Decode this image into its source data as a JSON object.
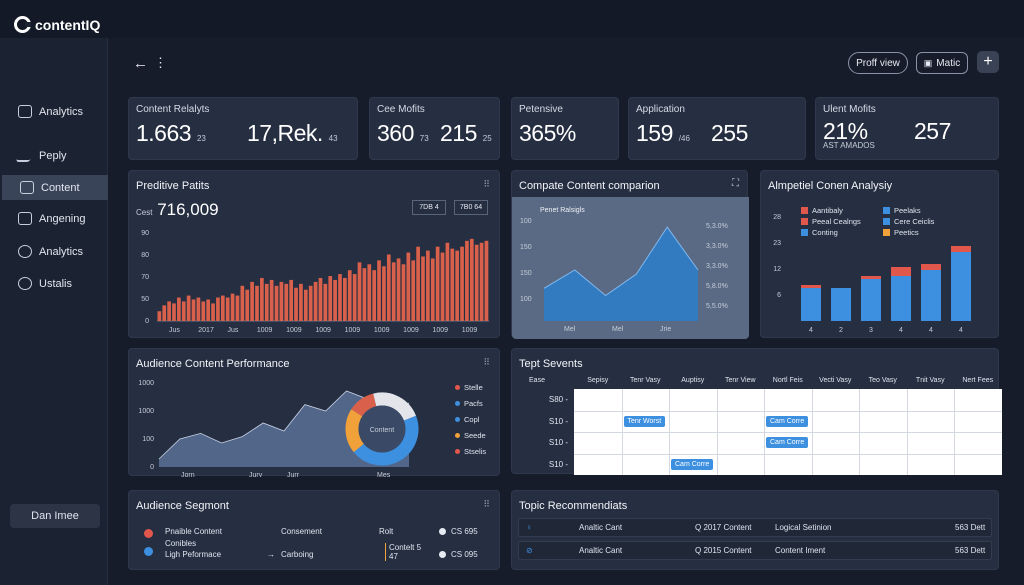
{
  "app": {
    "name": "contentIQ"
  },
  "sidebar": {
    "items": [
      {
        "label": "Analytics",
        "icon": "report-icon",
        "active": false
      },
      {
        "label": "Peply",
        "icon": "pen-icon",
        "active": false
      },
      {
        "label": "Content",
        "icon": "content-icon",
        "active": true
      },
      {
        "label": "Angening",
        "icon": "layers-icon",
        "active": false
      },
      {
        "label": "Analytics",
        "icon": "globe-icon",
        "active": false
      },
      {
        "label": "Ustalis",
        "icon": "gear-icon",
        "active": false
      }
    ],
    "bottom_button": "Dan Imee"
  },
  "toolbar": {
    "back": "←",
    "more": "⋮",
    "profile_button": "Proff view",
    "metric_button": "Matic",
    "add_button": "+"
  },
  "kpis": [
    {
      "label": "Content Relalyts",
      "values": [
        {
          "big": "1.663",
          "small": "23"
        },
        {
          "big": "17,Rek.",
          "small": "43"
        }
      ]
    },
    {
      "label": "Cee Mofits",
      "values": [
        {
          "big": "360",
          "small": "73"
        },
        {
          "big": "215",
          "small": "25"
        }
      ]
    },
    {
      "label": "Petensive",
      "values": [
        {
          "big": "365%",
          "small": ""
        }
      ]
    },
    {
      "label": "Application",
      "values": [
        {
          "big": "159",
          "small": "/46"
        },
        {
          "big": "255",
          "small": ""
        }
      ]
    },
    {
      "label": "Ulent Mofits",
      "values": [
        {
          "big": "21%",
          "small": ""
        },
        {
          "big": "257",
          "small": ""
        }
      ],
      "sub": "AST AMADOS"
    }
  ],
  "predictive": {
    "title": "Preditive Patits",
    "metric_prefix": "Cest",
    "metric_value": "716,009",
    "buttons": [
      "7DB 4",
      "7B0 64"
    ],
    "grip": "⠿",
    "chart_data": {
      "type": "bar",
      "y_ticks": [
        "0",
        "50",
        "70",
        "80",
        "90"
      ],
      "x_labels": [
        "Jus",
        "2017",
        "Jus",
        "1009",
        "1009",
        "1009",
        "1009",
        "1009",
        "1009",
        "1009",
        "1009"
      ],
      "color": "#d9604a",
      "values": [
        5,
        8,
        10,
        9,
        12,
        10,
        13,
        11,
        12,
        10,
        11,
        9,
        12,
        13,
        12,
        14,
        13,
        18,
        16,
        20,
        18,
        22,
        19,
        21,
        18,
        20,
        19,
        21,
        17,
        19,
        16,
        18,
        20,
        22,
        19,
        23,
        21,
        24,
        22,
        26,
        24,
        30,
        27,
        29,
        26,
        31,
        28,
        34,
        30,
        32,
        29,
        35,
        31,
        38,
        33,
        36,
        32,
        38,
        35,
        40,
        37,
        36,
        38,
        41,
        42,
        39,
        40,
        41
      ]
    }
  },
  "compare": {
    "title": "Compate Content comparion",
    "inner_label": "Penet Ralsigls",
    "right_ticks": [
      "5,3.0%",
      "3,3.0%",
      "3,3.0%",
      "5,8.0%",
      "5,5.0%"
    ],
    "left_ticks": [
      "100",
      "150",
      "150",
      "100"
    ],
    "x_labels": [
      "Mel",
      "Mel",
      "Jrie"
    ],
    "chart_data": {
      "type": "area",
      "series": [
        {
          "values": [
            3.2,
            5.0,
            2.5,
            4.6,
            9.2,
            5.0
          ]
        }
      ],
      "ylim": [
        0,
        10
      ]
    }
  },
  "analysis": {
    "title": "Almpetiel Conen Analysiy",
    "legend": [
      {
        "label": "Aantibaly",
        "color": "#e2574c"
      },
      {
        "label": "Peeal Cealngs",
        "color": "#e2574c"
      },
      {
        "label": "Conting",
        "color": "#3d8fe0"
      },
      {
        "label": "Peelaks",
        "color": "#3d8fe0"
      },
      {
        "label": "Cere Ceiclis",
        "color": "#3d8fe0"
      },
      {
        "label": "Peetics",
        "color": "#f0a13a"
      }
    ],
    "y_ticks": [
      "6",
      "12",
      "23",
      "28"
    ],
    "chart_data": {
      "type": "bar",
      "categories": [
        "4",
        "2",
        "3",
        "4",
        "4",
        "4"
      ],
      "series": [
        {
          "color": "#3d8fe0",
          "values": [
            11,
            11,
            14,
            15,
            17,
            23
          ]
        },
        {
          "color": "#e2574c",
          "values": [
            1,
            0,
            1,
            3,
            2,
            2
          ]
        }
      ],
      "ylim": [
        0,
        30
      ]
    }
  },
  "audience_perf": {
    "title": "Audience Content Performance",
    "y_ticks": [
      "0",
      "100",
      "1000",
      "1000"
    ],
    "x_labels": [
      "Jorn",
      "Jury",
      "Jurr",
      "Mes"
    ],
    "donut_label": "Content",
    "legend": [
      {
        "label": "Stelle",
        "color": "#e2574c"
      },
      {
        "label": "Pacfs",
        "color": "#3d8fe0"
      },
      {
        "label": "Copl",
        "color": "#3d8fe0"
      },
      {
        "label": "Seede",
        "color": "#f0a13a"
      },
      {
        "label": "Stselis",
        "color": "#e2574c"
      }
    ],
    "chart_data": {
      "type": "area",
      "series": [
        {
          "values": [
            0.1,
            0.35,
            0.42,
            0.3,
            0.38,
            0.55,
            0.45,
            0.78,
            0.7,
            0.95,
            0.85,
            0.62,
            0.8
          ]
        }
      ],
      "donut": [
        {
          "value": 45,
          "color": "#3d8fe0"
        },
        {
          "value": 20,
          "color": "#f0a13a"
        },
        {
          "value": 12,
          "color": "#d9604a"
        },
        {
          "value": 23,
          "color": "#e3e5ea"
        }
      ]
    }
  },
  "events": {
    "title": "Tept Sevents",
    "columns": [
      "Ease",
      "Sepisy",
      "Tenr Vasy",
      "Auptisy",
      "Tenr View",
      "Nortl Feis",
      "Vecti Vasy",
      "Teo Vasy",
      "Tnit Vasy",
      "Nert Fees"
    ],
    "rows": [
      "S80 -",
      "S10 -",
      "S10 -",
      "S10 -"
    ],
    "tags": [
      {
        "label": "Tenr Worst",
        "row": 1,
        "col": 1
      },
      {
        "label": "Cam Corre",
        "row": 1,
        "col": 4
      },
      {
        "label": "Cam Corre",
        "row": 2,
        "col": 4
      },
      {
        "label": "Cam Corre",
        "row": 3,
        "col": 2
      }
    ]
  },
  "segment": {
    "title": "Audience Segmont",
    "rows": [
      {
        "icon": "P",
        "icon_color": "#e2574c",
        "name": "Pnaible Content",
        "col2": "Consement",
        "col3": "Rolt",
        "col4": "CS 695"
      },
      {
        "icon": "",
        "icon_color": "",
        "name": "Conibles",
        "col2": "",
        "col3": "",
        "col4": ""
      },
      {
        "icon": "U",
        "icon_color": "#3d8fe0",
        "name": "Ligh Peformace",
        "col2": "Carboing",
        "col3": "Contelt 5 47",
        "col4": "CS 095"
      }
    ]
  },
  "topics": {
    "title": "Topic Recommendiats",
    "rows": [
      {
        "icon": "♀",
        "name": "Analtic Cant",
        "q": "Q 2017 Content",
        "name2": "Logical Setinion",
        "val": "563 Dett"
      },
      {
        "icon": "⊘",
        "name": "Analtic Cant",
        "q": "Q 2015 Content",
        "name2": "Content Iment",
        "val": "563 Dett"
      }
    ]
  }
}
